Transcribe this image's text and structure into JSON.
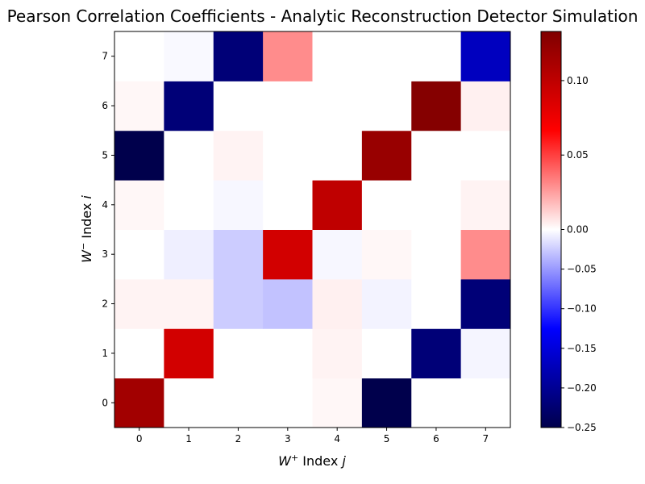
{
  "chart_data": {
    "type": "heatmap",
    "title": "Pearson Correlation Coefficients - Analytic Reconstruction Detector Simulation",
    "xlabel": "W⁺ Index j",
    "ylabel": "W⁻ Index i",
    "x_ticks": [
      "0",
      "1",
      "2",
      "3",
      "4",
      "5",
      "6",
      "7"
    ],
    "y_ticks": [
      "0",
      "1",
      "2",
      "3",
      "4",
      "5",
      "6",
      "7"
    ],
    "colorbar": {
      "colormap": "seismic",
      "vmin": -0.25,
      "vmax": 0.133,
      "ticks": [
        -0.25,
        -0.2,
        -0.15,
        -0.1,
        -0.05,
        0.0,
        0.05,
        0.1
      ],
      "tick_labels": [
        "−0.25",
        "−0.20",
        "−0.15",
        "−0.10",
        "−0.05",
        "0.00",
        "0.05",
        "0.10"
      ]
    },
    "values": [
      [
        0.115,
        0.0,
        0.0,
        0.0,
        0.002,
        -0.25,
        0.0,
        0.0
      ],
      [
        0.0,
        0.09,
        0.0,
        0.0,
        0.003,
        0.0,
        -0.22,
        -0.005
      ],
      [
        0.003,
        0.003,
        -0.025,
        -0.03,
        0.004,
        -0.006,
        0.0,
        -0.22
      ],
      [
        0.0,
        -0.008,
        -0.025,
        0.09,
        -0.004,
        0.002,
        0.0,
        0.03
      ],
      [
        0.002,
        0.0,
        -0.004,
        0.0,
        0.1,
        0.0,
        0.0,
        0.003
      ],
      [
        -0.25,
        0.0,
        0.003,
        0.0,
        0.0,
        0.12,
        0.0,
        0.0
      ],
      [
        0.002,
        -0.22,
        0.0,
        0.0,
        0.0,
        0.0,
        0.13,
        0.004
      ],
      [
        0.0,
        -0.003,
        -0.22,
        0.03,
        0.0,
        0.0,
        0.0,
        -0.17
      ]
    ]
  }
}
